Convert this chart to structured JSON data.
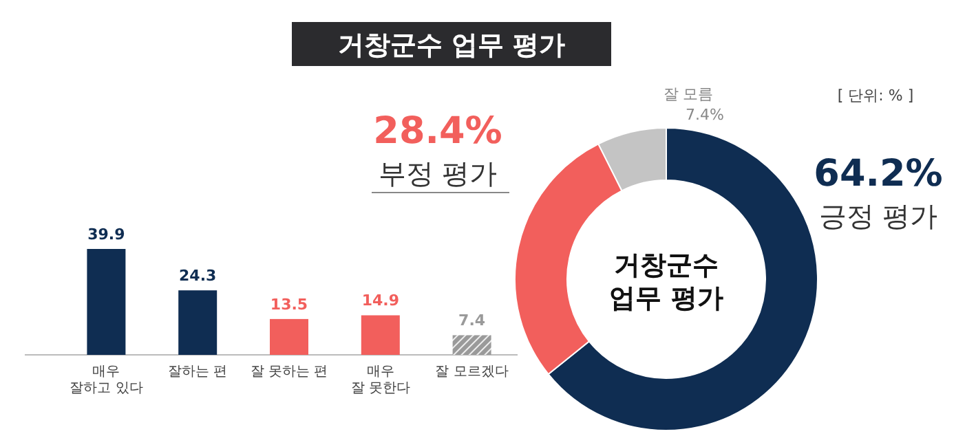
{
  "chart_data": [
    {
      "type": "bar",
      "title": "거창군수 업무 평가",
      "categories": [
        "매우\n잘하고 있다",
        "잘하는 편",
        "잘 못하는 편",
        "매우\n잘 못한다",
        "잘 모르겠다"
      ],
      "values": [
        39.9,
        24.3,
        13.5,
        14.9,
        7.4
      ],
      "colors": [
        "#0f2d52",
        "#0f2d52",
        "#f25f5c",
        "#f25f5c",
        "#9a9a9a"
      ],
      "data_labels": true
    },
    {
      "type": "donut",
      "categories": [
        "긍정 평가",
        "부정 평가",
        "잘 모름"
      ],
      "values": [
        64.2,
        28.4,
        7.4
      ],
      "value_labels": [
        "64.2%",
        "28.4%",
        "7.4%"
      ],
      "colors": [
        "#0f2d52",
        "#f25f5c",
        "#c4c4c4"
      ],
      "annotations": [
        "거창군수\n업무 평가",
        "[ 단위: % ]"
      ]
    }
  ]
}
